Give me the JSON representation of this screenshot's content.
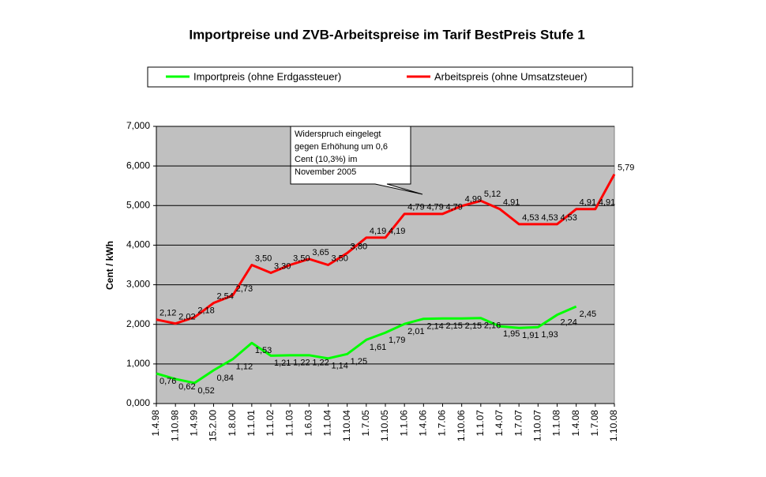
{
  "chart_data": {
    "type": "line",
    "title": "Importpreise und ZVB-Arbeitspreise im Tarif BestPreis Stufe 1",
    "y_label": "Cent / kWh",
    "annotation": [
      "Widerspruch eingelegt",
      "gegen Erhöhung um 0,6",
      "Cent (10,3%) im",
      "November 2005"
    ],
    "categories": [
      "1.4.98",
      "1.10.98",
      "1.4.99",
      "15.2.00",
      "1.8.00",
      "1.1.01",
      "1.1.02",
      "1.1.03",
      "1.6.03",
      "1.1.04",
      "1.10.04",
      "1.7.05",
      "1.10.05",
      "1.1.06",
      "1.4.06",
      "1.7.06",
      "1.10.06",
      "1.1.07",
      "1.4.07",
      "1.7.07",
      "1.10.07",
      "1.1.08",
      "1.4.08",
      "1.7.08",
      "1.10.08"
    ],
    "series": [
      {
        "name": "Importpreis (ohne Erdgassteuer)",
        "color": "#00ff00",
        "values": [
          0.76,
          0.62,
          0.52,
          0.84,
          1.12,
          1.53,
          1.21,
          1.22,
          1.22,
          1.14,
          1.25,
          1.61,
          1.79,
          2.01,
          2.14,
          2.15,
          2.15,
          2.16,
          1.95,
          1.91,
          1.93,
          2.24,
          2.45,
          null,
          null
        ],
        "value_labels": [
          "0,76",
          "0,62",
          "0,52",
          "0,84",
          "1,12",
          "1,53",
          "1,21",
          "1,22",
          "1,22",
          "1,14",
          "1,25",
          "1,61",
          "1,79",
          "2,01",
          "2,14",
          "2,15",
          "2,15",
          "2,16",
          "1,95",
          "1,91",
          "1,93",
          "2,24",
          "2,45",
          null,
          null
        ]
      },
      {
        "name": "Arbeitspreis (ohne Umsatzsteuer)",
        "color": "#ff0000",
        "values": [
          2.12,
          2.02,
          2.18,
          2.54,
          2.73,
          3.5,
          3.3,
          3.5,
          3.65,
          3.5,
          3.8,
          4.19,
          4.19,
          4.79,
          4.79,
          4.79,
          4.99,
          5.12,
          4.91,
          4.53,
          4.53,
          4.53,
          4.91,
          4.91,
          5.79
        ],
        "value_labels": [
          "2,12",
          "2,02",
          "2,18",
          "2,54",
          "2,73",
          "3,50",
          "3,30",
          "3,50",
          "3,65",
          "3,50",
          "3,80",
          "4,19",
          "4,19",
          "4,79",
          "4,79",
          "4,79",
          "4,99",
          "5,12",
          "4,91",
          "4,53",
          "4,53",
          "4,53",
          "4,91",
          "4,91",
          "5,79"
        ]
      }
    ],
    "ylim": [
      0,
      7
    ],
    "yticks": [
      {
        "value": 0,
        "label": "0,000"
      },
      {
        "value": 1,
        "label": "1,000"
      },
      {
        "value": 2,
        "label": "2,000"
      },
      {
        "value": 3,
        "label": "3,000"
      },
      {
        "value": 4,
        "label": "4,000"
      },
      {
        "value": 5,
        "label": "5,000"
      },
      {
        "value": 6,
        "label": "6,000"
      },
      {
        "value": 7,
        "label": "7,000"
      }
    ],
    "grid": true,
    "legend": "top"
  }
}
